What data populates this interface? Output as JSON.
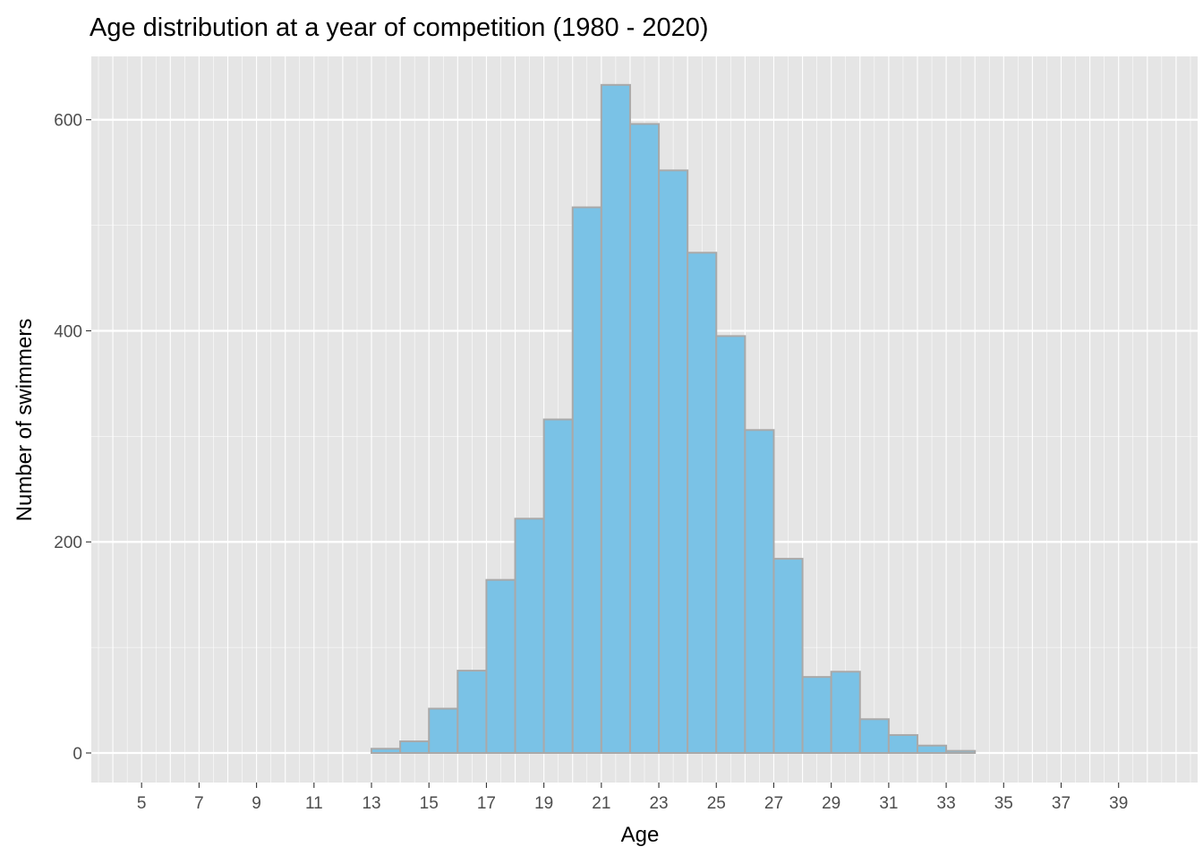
{
  "chart_data": {
    "type": "bar",
    "title": "Age distribution at a year of competition (1980 - 2020)",
    "xlabel": "Age",
    "ylabel": "Number of swimmers",
    "bin_width": 1,
    "xlim": [
      3.25,
      41.75
    ],
    "ylim": [
      -28,
      660
    ],
    "x_ticks": [
      5,
      7,
      9,
      11,
      13,
      15,
      17,
      19,
      21,
      23,
      25,
      27,
      29,
      31,
      33,
      35,
      37,
      39
    ],
    "y_ticks": [
      0,
      200,
      400,
      600
    ],
    "bins": [
      {
        "start": 5,
        "end": 6,
        "count": 0
      },
      {
        "start": 6,
        "end": 7,
        "count": 0
      },
      {
        "start": 7,
        "end": 8,
        "count": 0
      },
      {
        "start": 8,
        "end": 9,
        "count": 0
      },
      {
        "start": 9,
        "end": 10,
        "count": 0
      },
      {
        "start": 10,
        "end": 11,
        "count": 0
      },
      {
        "start": 11,
        "end": 12,
        "count": 0
      },
      {
        "start": 12,
        "end": 13,
        "count": 0
      },
      {
        "start": 13,
        "end": 14,
        "count": 4
      },
      {
        "start": 14,
        "end": 15,
        "count": 11
      },
      {
        "start": 15,
        "end": 16,
        "count": 42
      },
      {
        "start": 16,
        "end": 17,
        "count": 78
      },
      {
        "start": 17,
        "end": 18,
        "count": 164
      },
      {
        "start": 18,
        "end": 19,
        "count": 222
      },
      {
        "start": 19,
        "end": 20,
        "count": 316
      },
      {
        "start": 20,
        "end": 21,
        "count": 517
      },
      {
        "start": 21,
        "end": 22,
        "count": 633
      },
      {
        "start": 22,
        "end": 23,
        "count": 596
      },
      {
        "start": 23,
        "end": 24,
        "count": 552
      },
      {
        "start": 24,
        "end": 25,
        "count": 474
      },
      {
        "start": 25,
        "end": 26,
        "count": 395
      },
      {
        "start": 26,
        "end": 27,
        "count": 306
      },
      {
        "start": 27,
        "end": 28,
        "count": 184
      },
      {
        "start": 28,
        "end": 29,
        "count": 72
      },
      {
        "start": 29,
        "end": 30,
        "count": 77
      },
      {
        "start": 30,
        "end": 31,
        "count": 32
      },
      {
        "start": 31,
        "end": 32,
        "count": 17
      },
      {
        "start": 32,
        "end": 33,
        "count": 7
      },
      {
        "start": 33,
        "end": 34,
        "count": 2
      },
      {
        "start": 34,
        "end": 35,
        "count": 0
      },
      {
        "start": 35,
        "end": 36,
        "count": 0
      },
      {
        "start": 36,
        "end": 37,
        "count": 0
      },
      {
        "start": 37,
        "end": 38,
        "count": 0
      },
      {
        "start": 38,
        "end": 39,
        "count": 0
      },
      {
        "start": 39,
        "end": 40,
        "count": 0
      }
    ],
    "colors": {
      "fill": "#7ac2e6",
      "stroke": "#a9a9a9",
      "panel": "#e5e5e5",
      "grid": "#ffffff",
      "text": "#4d4d4d",
      "title": "#000000"
    },
    "grid": true,
    "legend": "none"
  }
}
